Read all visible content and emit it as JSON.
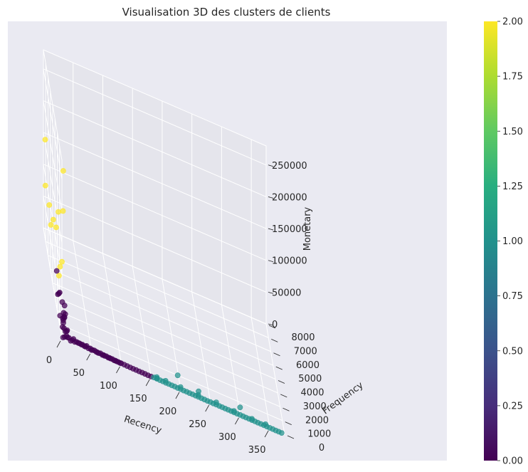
{
  "chart_data": {
    "type": "scatter",
    "projection": "3d",
    "title": "Visualisation 3D des clusters de clients",
    "xlabel": "Recency",
    "ylabel": "Frequency",
    "zlabel": "Monetary",
    "xlim": [
      0,
      375
    ],
    "ylim": [
      0,
      8000
    ],
    "zlim": [
      0,
      280000
    ],
    "x_ticks": [
      0,
      50,
      100,
      150,
      200,
      250,
      300,
      350
    ],
    "y_ticks": [
      0,
      1000,
      2000,
      3000,
      4000,
      5000,
      6000,
      7000,
      8000
    ],
    "z_ticks": [
      0,
      50000,
      100000,
      150000,
      200000,
      250000
    ],
    "grid": true,
    "colormap": "viridis",
    "colorbar": {
      "min": 0.0,
      "max": 2.0,
      "ticks": [
        "0.00",
        "0.25",
        "0.50",
        "0.75",
        "1.00",
        "1.25",
        "1.50",
        "1.75",
        "2.00"
      ]
    },
    "colors": {
      "cluster_0": "#440154",
      "cluster_1": "#21918c",
      "cluster_2": "#fde725",
      "pane": "#eaeaf2",
      "grid": "#ffffff"
    },
    "series": [
      {
        "cluster": 0,
        "points": [
          [
            2,
            20,
            1500
          ],
          [
            5,
            40,
            3000
          ],
          [
            8,
            80,
            5000
          ],
          [
            10,
            120,
            2500
          ],
          [
            12,
            60,
            4000
          ],
          [
            15,
            30,
            1200
          ],
          [
            18,
            90,
            2200
          ],
          [
            20,
            150,
            3500
          ],
          [
            22,
            45,
            1800
          ],
          [
            25,
            70,
            2600
          ],
          [
            28,
            110,
            1400
          ],
          [
            30,
            35,
            3100
          ],
          [
            33,
            55,
            2000
          ],
          [
            35,
            95,
            1700
          ],
          [
            38,
            25,
            2400
          ],
          [
            40,
            65,
            1300
          ],
          [
            42,
            130,
            1900
          ],
          [
            45,
            40,
            1100
          ],
          [
            48,
            75,
            1600
          ],
          [
            50,
            30,
            900
          ],
          [
            52,
            55,
            1200
          ],
          [
            55,
            85,
            1000
          ],
          [
            58,
            20,
            1400
          ],
          [
            60,
            45,
            800
          ],
          [
            62,
            35,
            700
          ],
          [
            65,
            60,
            1100
          ],
          [
            68,
            25,
            600
          ],
          [
            70,
            40,
            900
          ],
          [
            72,
            30,
            500
          ],
          [
            75,
            50,
            700
          ],
          [
            78,
            20,
            400
          ],
          [
            80,
            35,
            600
          ],
          [
            82,
            25,
            500
          ],
          [
            85,
            45,
            400
          ],
          [
            88,
            15,
            300
          ],
          [
            90,
            30,
            350
          ],
          [
            92,
            20,
            300
          ],
          [
            95,
            25,
            250
          ],
          [
            98,
            15,
            200
          ],
          [
            100,
            20,
            220
          ],
          [
            105,
            15,
            180
          ],
          [
            110,
            12,
            150
          ],
          [
            115,
            10,
            120
          ],
          [
            120,
            8,
            100
          ],
          [
            125,
            10,
            90
          ],
          [
            130,
            6,
            80
          ],
          [
            135,
            8,
            70
          ],
          [
            140,
            5,
            60
          ],
          [
            145,
            4,
            50
          ],
          [
            150,
            5,
            40
          ],
          [
            3,
            200,
            25000
          ],
          [
            6,
            400,
            45000
          ],
          [
            4,
            300,
            35000
          ],
          [
            5,
            250,
            30000
          ],
          [
            2,
            350,
            50000
          ],
          [
            3,
            150,
            22000
          ],
          [
            8,
            600,
            28000
          ],
          [
            2,
            1500,
            40000
          ],
          [
            1,
            2000,
            26000
          ],
          [
            0,
            800,
            18000
          ],
          [
            4,
            100,
            15000
          ],
          [
            6,
            50,
            12000
          ],
          [
            10,
            300,
            10000
          ],
          [
            3,
            500,
            8000
          ],
          [
            7,
            700,
            20000
          ],
          [
            1,
            2500,
            52000
          ],
          [
            2,
            1800,
            32000
          ],
          [
            5,
            900,
            14000
          ],
          [
            9,
            250,
            9000
          ]
        ]
      },
      {
        "cluster": 1,
        "points": [
          [
            155,
            10,
            400
          ],
          [
            160,
            15,
            300
          ],
          [
            165,
            8,
            250
          ],
          [
            170,
            12,
            350
          ],
          [
            175,
            5,
            200
          ],
          [
            180,
            10,
            280
          ],
          [
            185,
            6,
            180
          ],
          [
            190,
            8,
            220
          ],
          [
            195,
            4,
            160
          ],
          [
            200,
            9,
            250
          ],
          [
            205,
            5,
            150
          ],
          [
            210,
            7,
            190
          ],
          [
            215,
            3,
            120
          ],
          [
            220,
            6,
            170
          ],
          [
            225,
            4,
            140
          ],
          [
            230,
            8,
            200
          ],
          [
            235,
            3,
            110
          ],
          [
            240,
            5,
            160
          ],
          [
            245,
            2,
            90
          ],
          [
            250,
            6,
            150
          ],
          [
            255,
            3,
            100
          ],
          [
            260,
            4,
            130
          ],
          [
            265,
            2,
            80
          ],
          [
            270,
            5,
            120
          ],
          [
            275,
            3,
            90
          ],
          [
            280,
            4,
            110
          ],
          [
            285,
            2,
            70
          ],
          [
            290,
            3,
            100
          ],
          [
            295,
            2,
            80
          ],
          [
            300,
            4,
            90
          ],
          [
            305,
            2,
            60
          ],
          [
            310,
            3,
            80
          ],
          [
            315,
            1,
            50
          ],
          [
            320,
            2,
            70
          ],
          [
            325,
            3,
            60
          ],
          [
            330,
            1,
            40
          ],
          [
            335,
            2,
            50
          ],
          [
            340,
            1,
            45
          ],
          [
            345,
            2,
            40
          ],
          [
            350,
            1,
            30
          ],
          [
            355,
            2,
            35
          ],
          [
            360,
            1,
            25
          ],
          [
            365,
            1,
            20
          ],
          [
            370,
            2,
            30
          ],
          [
            160,
            80,
            1500
          ],
          [
            175,
            120,
            900
          ],
          [
            200,
            60,
            2500
          ],
          [
            230,
            100,
            1200
          ],
          [
            260,
            40,
            3000
          ],
          [
            290,
            70,
            800
          ],
          [
            320,
            30,
            1500
          ],
          [
            343,
            50,
            1800
          ],
          [
            300,
            2,
            12000
          ],
          [
            230,
            5,
            9000
          ],
          [
            195,
            8,
            20000
          ],
          [
            160,
            3,
            1000
          ]
        ]
      },
      {
        "cluster": 2,
        "points": [
          [
            5,
            700,
            250000
          ],
          [
            2,
            40,
            200000
          ],
          [
            3,
            8000,
            140000
          ],
          [
            1,
            1800,
            160000
          ],
          [
            0,
            10,
            120000
          ],
          [
            2,
            3000,
            110000
          ],
          [
            1,
            7400,
            80000
          ],
          [
            3,
            4500,
            90000
          ],
          [
            4,
            6500,
            70000
          ],
          [
            3,
            5500,
            60000
          ],
          [
            2,
            1300,
            85000
          ],
          [
            6,
            2800,
            40000
          ]
        ]
      }
    ]
  }
}
